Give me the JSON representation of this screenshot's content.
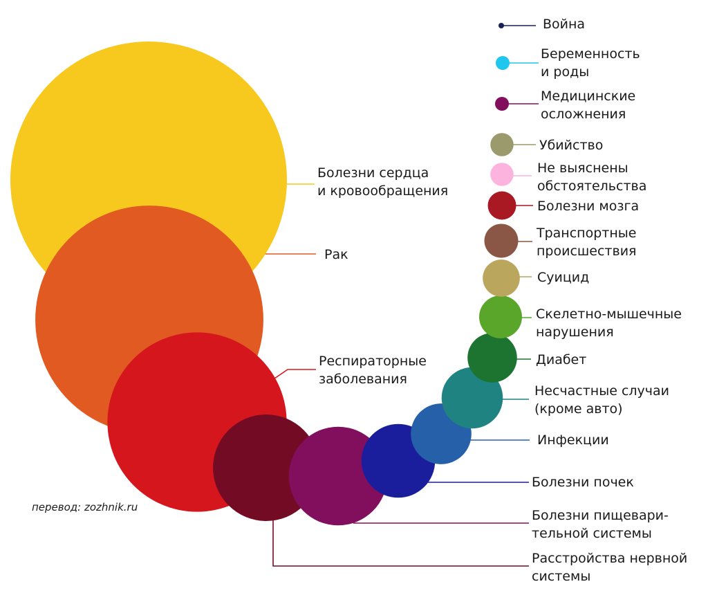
{
  "credit": "перевод: zozhnik.ru",
  "chart_data": {
    "type": "bubble",
    "title": "",
    "encoding": "circle area represents relative share of deaths",
    "bubbles": [
      {
        "id": "heart",
        "label": [
          "Болезни сердца",
          "и кровообращения"
        ],
        "value": 100,
        "color": "#F7C81E",
        "line": "#F7C81E"
      },
      {
        "id": "cancer",
        "label": [
          "Рак"
        ],
        "value": 68,
        "color": "#E05A22",
        "line": "#E05A22"
      },
      {
        "id": "resp",
        "label": [
          "Респираторные",
          "заболевания"
        ],
        "value": 42,
        "color": "#D5161C",
        "line": "#D5161C"
      },
      {
        "id": "nerv",
        "label": [
          "Расстройства нервной",
          "системы"
        ],
        "value": 14.8,
        "color": "#740B24",
        "line": "#740B24"
      },
      {
        "id": "digest",
        "label": [
          "Болезни пищевари-",
          "тельной системы"
        ],
        "value": 12.7,
        "color": "#820E5E",
        "line": "#820E5E"
      },
      {
        "id": "kidney",
        "label": [
          "Болезни почек"
        ],
        "value": 7.1,
        "color": "#1B1E9C",
        "line": "#1B1E9C"
      },
      {
        "id": "infect",
        "label": [
          "Инфекции"
        ],
        "value": 4.8,
        "color": "#2660A8",
        "line": "#2660A8"
      },
      {
        "id": "accid",
        "label": [
          "Несчастные случаи",
          "(кроме авто)"
        ],
        "value": 4.9,
        "color": "#1F8481",
        "line": "#1F8481"
      },
      {
        "id": "diab",
        "label": [
          "Диабет"
        ],
        "value": 3.2,
        "color": "#1D7330",
        "line": "#1D7330"
      },
      {
        "id": "musc",
        "label": [
          "Скелетно-мышечные",
          "нарушения"
        ],
        "value": 2.4,
        "color": "#5AA62B",
        "line": "#5AA62B"
      },
      {
        "id": "suic",
        "label": [
          "Суицид"
        ],
        "value": 1.8,
        "color": "#BBA65E",
        "line": "#BBA65E"
      },
      {
        "id": "trans",
        "label": [
          "Транспортные",
          "происшествия"
        ],
        "value": 1.5,
        "color": "#8A5746",
        "line": "#8A5746"
      },
      {
        "id": "brain",
        "label": [
          "Болезни мозга"
        ],
        "value": 1.05,
        "color": "#A81923",
        "line": "#A81923"
      },
      {
        "id": "unkn",
        "label": [
          "Не выяснены",
          "обстоятельства"
        ],
        "value": 0.7,
        "color": "#FCB3DD",
        "line": "#FCB3DD"
      },
      {
        "id": "homic",
        "label": [
          "Убийство"
        ],
        "value": 0.7,
        "color": "#9B9A6C",
        "line": "#9B9A6C"
      },
      {
        "id": "medic",
        "label": [
          "Медицинские",
          "осложнения"
        ],
        "value": 0.15,
        "color": "#820E5E",
        "line": "#820E5E"
      },
      {
        "id": "preg",
        "label": [
          "Беременность",
          "и роды"
        ],
        "value": 0.2,
        "color": "#1FC7EE",
        "line": "#1FC7EE"
      },
      {
        "id": "war",
        "label": [
          "Война"
        ],
        "value": 0.02,
        "color": "#1A2154",
        "line": "#1A2154"
      }
    ]
  }
}
